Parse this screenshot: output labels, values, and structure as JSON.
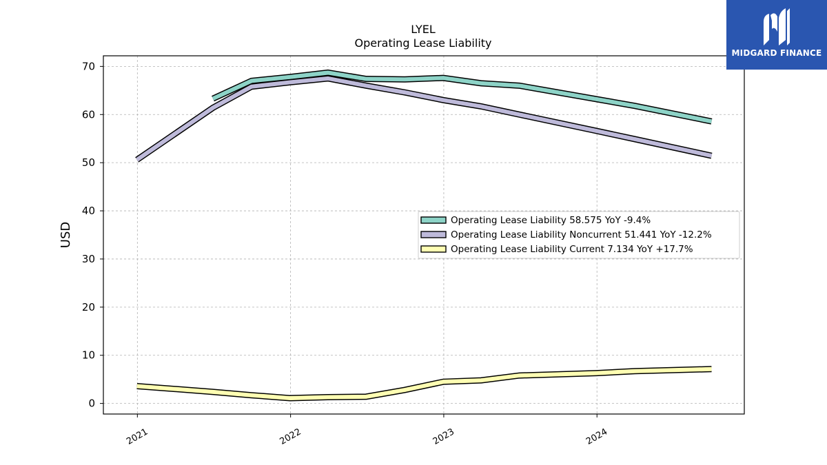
{
  "brand": {
    "name": "MIDGARD FINANCE",
    "logo_icon": "midgard-m-logo-icon",
    "background": "#2a56b0"
  },
  "chart_data": {
    "type": "line",
    "title": "LYEL",
    "subtitle": "Operating Lease Liability",
    "xlabel": "",
    "ylabel": "USD",
    "ylim": [
      -2.2,
      72.2
    ],
    "xlim": [
      "2020-10-12",
      "2024-12-17"
    ],
    "x_ticks": [
      "2021",
      "2022",
      "2023",
      "2024"
    ],
    "y_ticks": [
      0,
      10,
      20,
      30,
      40,
      50,
      60,
      70
    ],
    "grid": true,
    "legend_position": "right-center",
    "x": [
      "2020-12-31",
      "2021-06-30",
      "2021-09-30",
      "2021-12-31",
      "2022-03-31",
      "2022-06-30",
      "2022-09-30",
      "2022-12-31",
      "2023-03-31",
      "2023-06-30",
      "2023-12-31",
      "2024-03-31",
      "2024-09-30"
    ],
    "series": [
      {
        "name": "Operating Lease Liability",
        "legend": "Operating Lease Liability  58.575 YoY -9.4%",
        "color": "#8dd3c7",
        "values": [
          null,
          63.3,
          67.0,
          67.8,
          68.7,
          67.4,
          67.3,
          67.6,
          66.5,
          66.0,
          63.2,
          61.8,
          58.575
        ]
      },
      {
        "name": "Operating Lease Liability Noncurrent",
        "legend": "Operating Lease Liability Noncurrent  51.441 YoY -12.2%",
        "color": "#bebada",
        "values": [
          50.6,
          61.4,
          65.8,
          66.7,
          67.5,
          66.0,
          64.6,
          63.0,
          61.7,
          60.0,
          56.6,
          54.9,
          51.441
        ]
      },
      {
        "name": "Operating Lease Liability Current",
        "legend": "Operating Lease Liability Current  7.134 YoY +17.7%",
        "color": "#ffffb3",
        "values": [
          3.6,
          2.4,
          1.7,
          1.1,
          1.3,
          1.4,
          2.8,
          4.5,
          4.8,
          5.8,
          6.3,
          6.7,
          7.134
        ]
      }
    ]
  }
}
